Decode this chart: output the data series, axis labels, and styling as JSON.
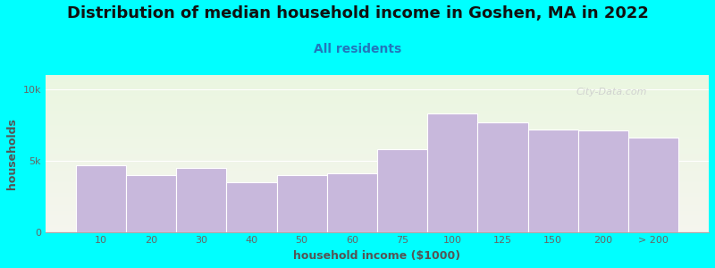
{
  "title": "Distribution of median household income in Goshen, MA in 2022",
  "subtitle": "All residents",
  "xlabel": "household income ($1000)",
  "ylabel": "households",
  "background_color": "#00FFFF",
  "plot_bg_top": "#eaf6e0",
  "plot_bg_bottom": "#f5f5ee",
  "bar_color": "#c8b8dc",
  "bar_edge_color": "#c8b8dc",
  "watermark": "City-Data.com",
  "categories": [
    "10",
    "20",
    "30",
    "40",
    "50",
    "60",
    "75",
    "100",
    "125",
    "150",
    "200",
    "> 200"
  ],
  "values": [
    4700,
    4000,
    4500,
    3500,
    4000,
    4100,
    5800,
    8300,
    7700,
    7200,
    7100,
    6600
  ],
  "ylim": [
    0,
    11000
  ],
  "yticks": [
    0,
    5000,
    10000
  ],
  "ytick_labels": [
    "0",
    "5k",
    "10k"
  ],
  "title_fontsize": 13,
  "subtitle_fontsize": 10,
  "axis_label_fontsize": 9,
  "tick_fontsize": 8,
  "title_color": "#111111",
  "subtitle_color": "#2277bb",
  "axis_label_color": "#555555",
  "tick_color": "#666666"
}
